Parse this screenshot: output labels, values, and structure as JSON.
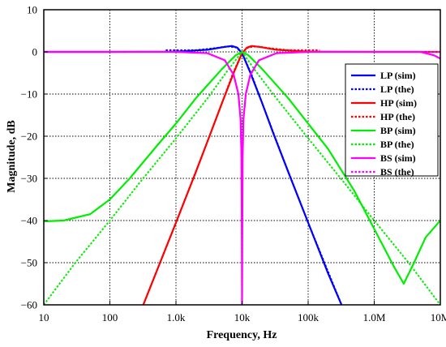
{
  "chart_data": {
    "type": "line",
    "title": "",
    "xlabel": "Frequency, Hz",
    "ylabel": "Magnitude, dB",
    "x_scale": "log",
    "xlim": [
      10,
      10000000
    ],
    "ylim": [
      -60,
      10
    ],
    "grid": true,
    "legend_position": "right",
    "x_ticks": [
      10,
      100,
      1000,
      10000,
      100000,
      1000000,
      10000000
    ],
    "x_tick_labels": [
      "10",
      "100",
      "1.0k",
      "10k",
      "100k",
      "1.0M",
      "10M"
    ],
    "y_ticks": [
      -60,
      -50,
      -40,
      -30,
      -20,
      -10,
      0,
      10
    ],
    "y_tick_labels": [
      "−60",
      "−50",
      "−40",
      "−30",
      "−20",
      "−10",
      "0",
      "10"
    ],
    "series": [
      {
        "name": "LP (sim)",
        "color": "#0000ff",
        "style": "solid",
        "points": [
          [
            10,
            0
          ],
          [
            100,
            0
          ],
          [
            1000,
            0.05
          ],
          [
            3000,
            0.5
          ],
          [
            5000,
            1.1
          ],
          [
            7000,
            1.4
          ],
          [
            8500,
            1.0
          ],
          [
            10000,
            -0.3
          ],
          [
            13000,
            -4.5
          ],
          [
            20000,
            -12
          ],
          [
            30000,
            -19.5
          ],
          [
            50000,
            -28.5
          ],
          [
            100000,
            -40.5
          ],
          [
            200000,
            -52.5
          ],
          [
            320000,
            -60
          ]
        ]
      },
      {
        "name": "LP (the)",
        "color": "#0000ff",
        "style": "dashed",
        "points": [
          [
            700,
            0.4
          ],
          [
            2000,
            0.4
          ],
          [
            4000,
            0.9
          ],
          [
            6000,
            1.3
          ],
          [
            8000,
            1.1
          ],
          [
            10000,
            -0.2
          ],
          [
            14000,
            -5.5
          ],
          [
            20000,
            -12
          ],
          [
            40000,
            -24.5
          ],
          [
            100000,
            -40.5
          ],
          [
            320000,
            -60
          ]
        ]
      },
      {
        "name": "HP (sim)",
        "color": "#ff0000",
        "style": "solid",
        "points": [
          [
            320,
            -60
          ],
          [
            1000,
            -40.5
          ],
          [
            2000,
            -28.5
          ],
          [
            3300,
            -19.5
          ],
          [
            5000,
            -12
          ],
          [
            7700,
            -4.5
          ],
          [
            10000,
            -0.3
          ],
          [
            11800,
            1.0
          ],
          [
            14000,
            1.4
          ],
          [
            20000,
            1.1
          ],
          [
            33000,
            0.5
          ],
          [
            100000,
            0.05
          ],
          [
            1000000,
            0
          ],
          [
            10000000,
            0
          ]
        ]
      },
      {
        "name": "HP (the)",
        "color": "#ff0000",
        "style": "dashed",
        "points": [
          [
            320,
            -60
          ],
          [
            1000,
            -40.5
          ],
          [
            2500,
            -24.5
          ],
          [
            5000,
            -12
          ],
          [
            7100,
            -5.5
          ],
          [
            10000,
            -0.2
          ],
          [
            12500,
            1.1
          ],
          [
            16700,
            1.3
          ],
          [
            25000,
            0.9
          ],
          [
            50000,
            0.4
          ],
          [
            150000,
            0.4
          ]
        ]
      },
      {
        "name": "BP (sim)",
        "color": "#00ee00",
        "style": "solid",
        "points": [
          [
            10,
            -40.2
          ],
          [
            20,
            -40.0
          ],
          [
            50,
            -38.5
          ],
          [
            100,
            -35
          ],
          [
            200,
            -30
          ],
          [
            500,
            -22.5
          ],
          [
            1000,
            -17
          ],
          [
            2000,
            -11
          ],
          [
            5000,
            -4
          ],
          [
            8000,
            -0.8
          ],
          [
            10000,
            0
          ],
          [
            12500,
            -0.8
          ],
          [
            20000,
            -4
          ],
          [
            50000,
            -11
          ],
          [
            100000,
            -17
          ],
          [
            200000,
            -23
          ],
          [
            500000,
            -33
          ],
          [
            1000000,
            -42
          ],
          [
            2000000,
            -51
          ],
          [
            2800000,
            -55
          ],
          [
            4000000,
            -50
          ],
          [
            6000000,
            -44
          ],
          [
            10000000,
            -40
          ]
        ]
      },
      {
        "name": "BP (the)",
        "color": "#00ee00",
        "style": "dashed",
        "points": [
          [
            10,
            -60
          ],
          [
            30,
            -50
          ],
          [
            100,
            -40
          ],
          [
            300,
            -30.5
          ],
          [
            1000,
            -20.5
          ],
          [
            3000,
            -11
          ],
          [
            6000,
            -4.5
          ],
          [
            10000,
            0
          ],
          [
            16000,
            -4.5
          ],
          [
            33000,
            -11
          ],
          [
            100000,
            -20.5
          ],
          [
            330000,
            -30.5
          ],
          [
            1000000,
            -40
          ],
          [
            3300000,
            -50
          ],
          [
            10000000,
            -60
          ]
        ]
      },
      {
        "name": "BS (sim)",
        "color": "#ff00ff",
        "style": "solid",
        "points": [
          [
            10,
            0
          ],
          [
            1000,
            0
          ],
          [
            3000,
            -0.3
          ],
          [
            5500,
            -2
          ],
          [
            7500,
            -5.5
          ],
          [
            8800,
            -10
          ],
          [
            9500,
            -16
          ],
          [
            9800,
            -25
          ],
          [
            9950,
            -45
          ],
          [
            10000,
            -60
          ],
          [
            10050,
            -45
          ],
          [
            10200,
            -25
          ],
          [
            10500,
            -16
          ],
          [
            11400,
            -10
          ],
          [
            13300,
            -5.5
          ],
          [
            18000,
            -2
          ],
          [
            33000,
            -0.3
          ],
          [
            100000,
            0
          ],
          [
            5000000,
            0
          ],
          [
            8000000,
            -0.8
          ],
          [
            10000000,
            -1.6
          ]
        ]
      },
      {
        "name": "BS (the)",
        "color": "#ff00ff",
        "style": "dashed",
        "points": [
          [
            10,
            0
          ],
          [
            1000,
            0
          ],
          [
            3000,
            -0.3
          ],
          [
            5500,
            -2
          ],
          [
            7500,
            -5.5
          ],
          [
            8800,
            -10
          ],
          [
            9500,
            -16
          ],
          [
            9800,
            -25
          ],
          [
            9950,
            -45
          ],
          [
            10000,
            -60
          ],
          [
            10050,
            -45
          ],
          [
            10200,
            -25
          ],
          [
            10500,
            -16
          ],
          [
            11400,
            -10
          ],
          [
            13300,
            -5.5
          ],
          [
            18000,
            -2
          ],
          [
            33000,
            -0.3
          ],
          [
            100000,
            0
          ],
          [
            10000000,
            0
          ]
        ]
      }
    ]
  }
}
